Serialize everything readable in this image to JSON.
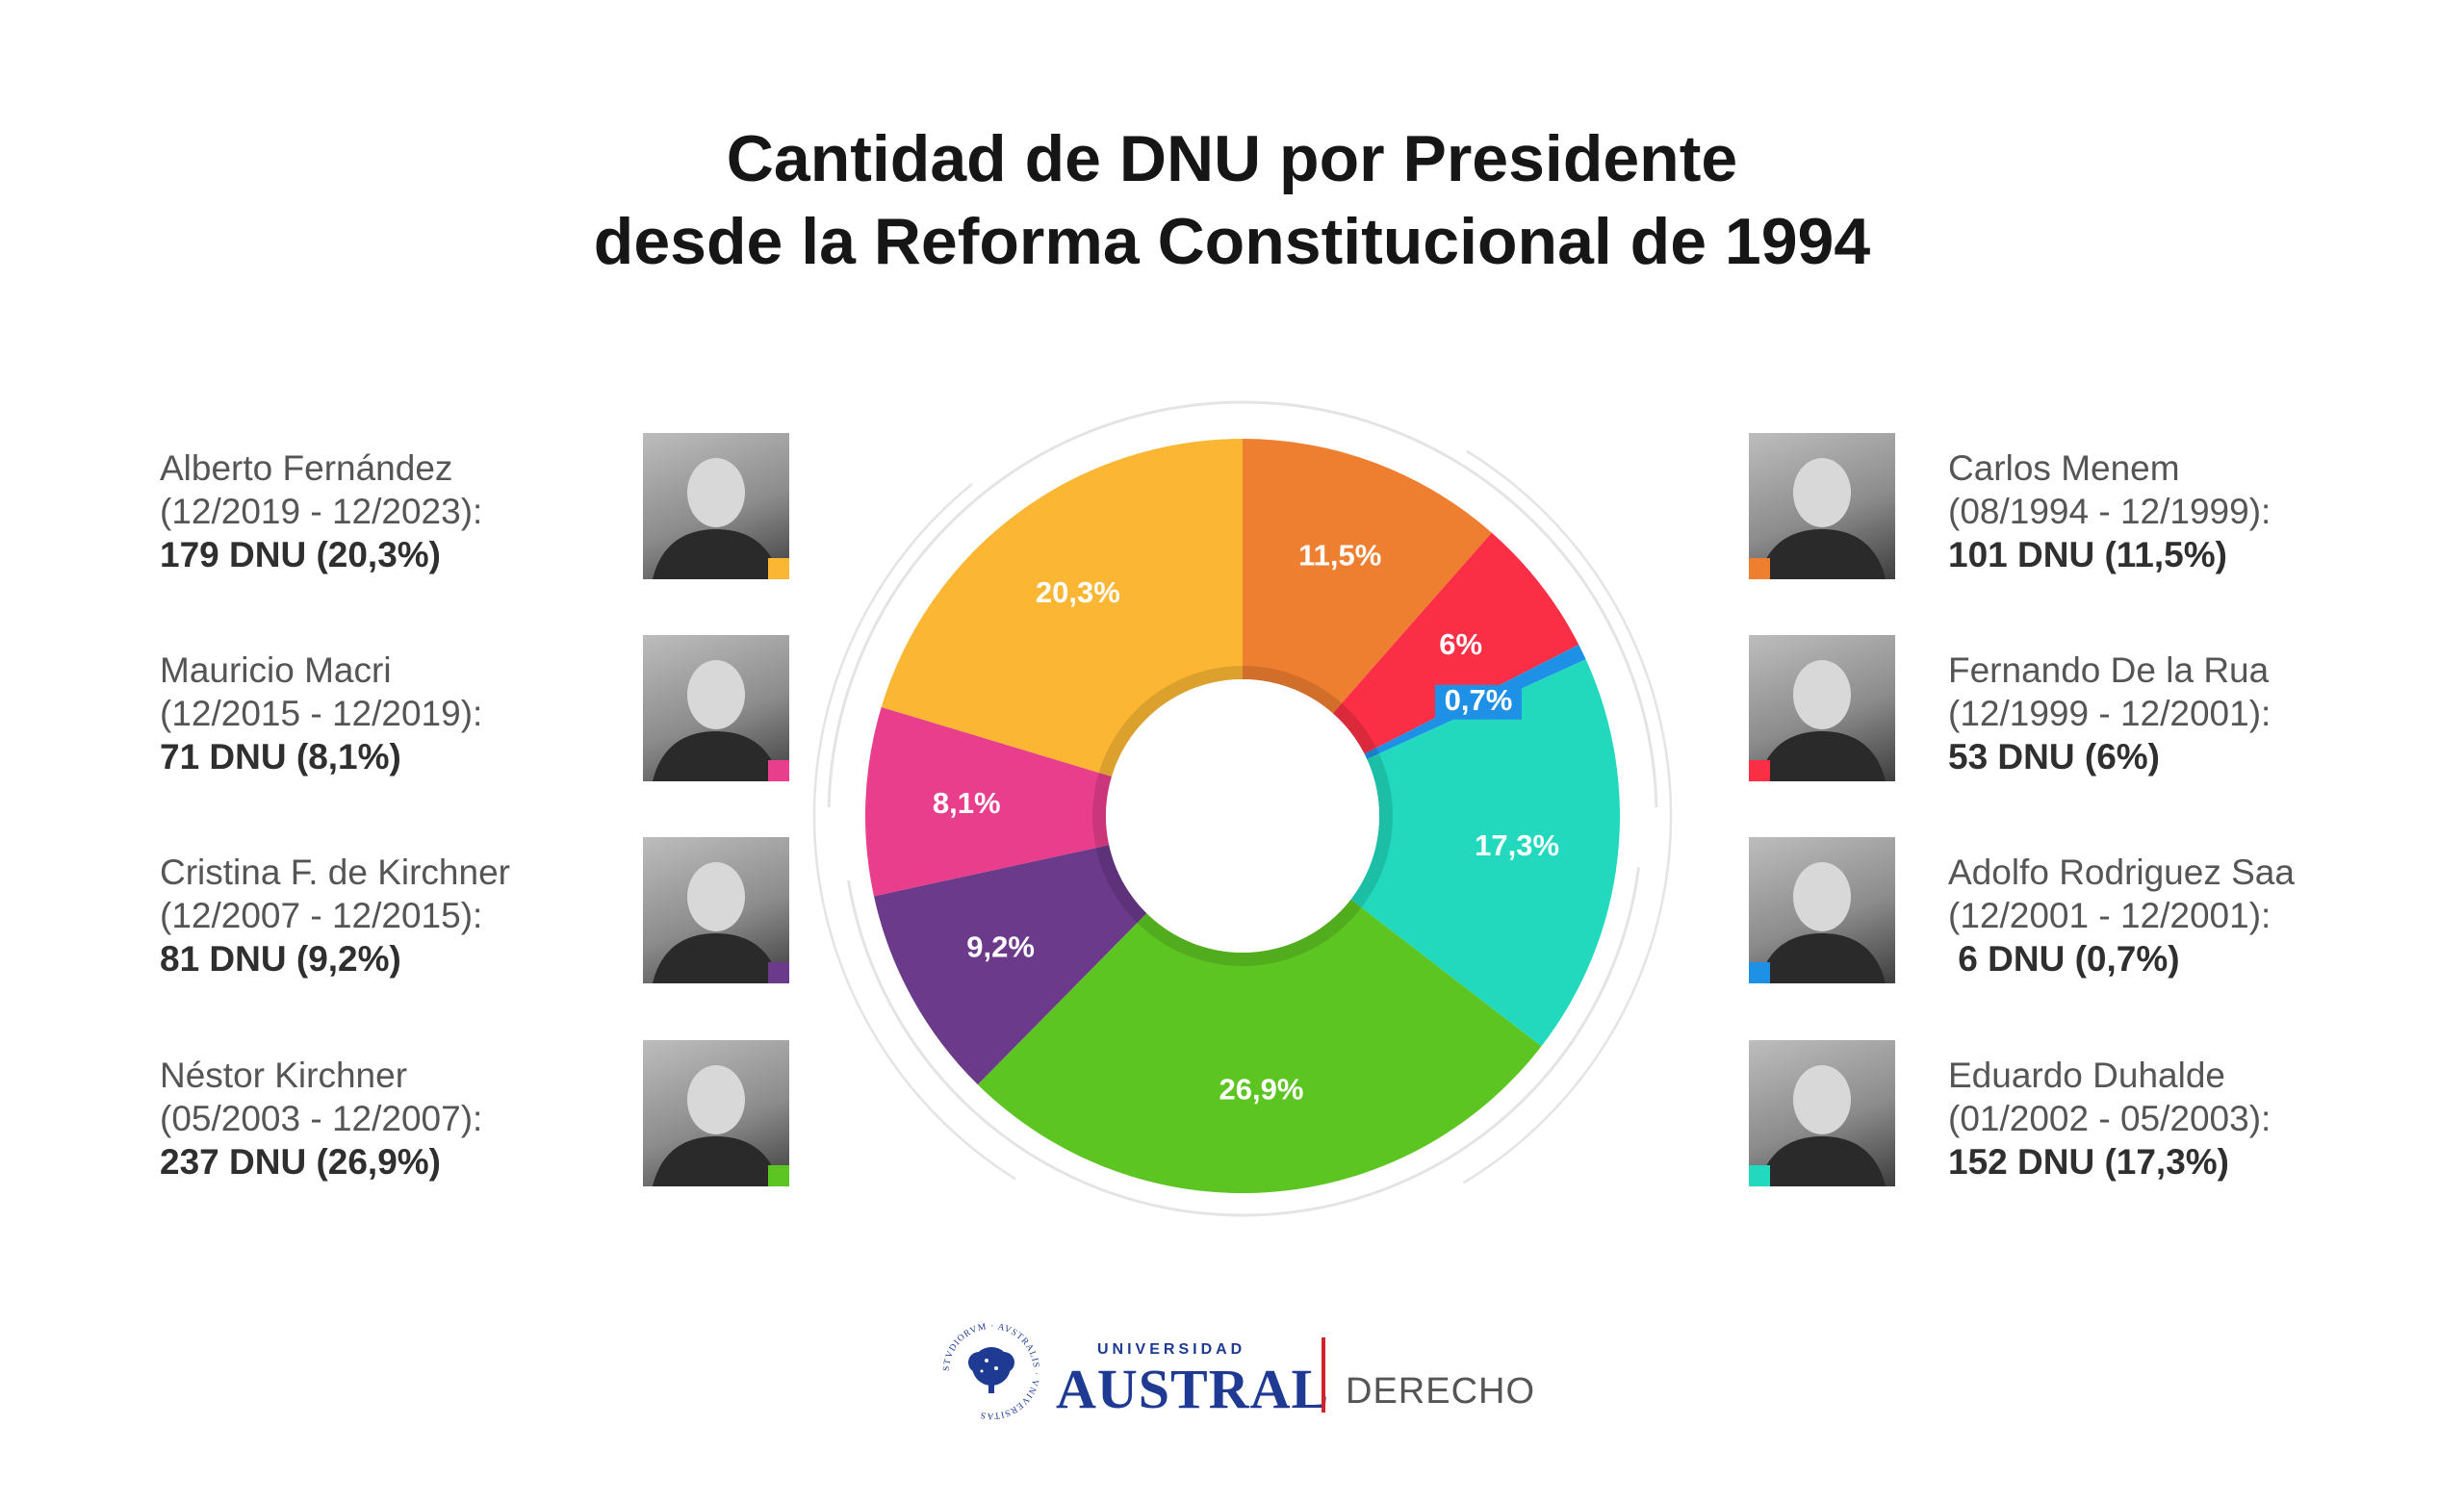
{
  "title": {
    "line1": "Cantidad de DNU por Presidente",
    "line2": "desde la Reforma Constitucional de 1994"
  },
  "presidents_left": [
    {
      "name": "Alberto Fernández",
      "period": "(12/2019 - 12/2023):",
      "count": "179 DNU (20,3%)",
      "color": "#FBB733"
    },
    {
      "name": "Mauricio Macri",
      "period": "(12/2015 - 12/2019):",
      "count": "71 DNU (8,1%)",
      "color": "#E83E8C"
    },
    {
      "name": "Cristina F. de Kirchner",
      "period": "(12/2007 - 12/2015):",
      "count": "81 DNU (9,2%)",
      "color": "#6B3A8B"
    },
    {
      "name": "Néstor Kirchner",
      "period": "(05/2003 - 12/2007):",
      "count": "237 DNU (26,9%)",
      "color": "#5DC522"
    }
  ],
  "presidents_right": [
    {
      "name": "Carlos Menem",
      "period": "(08/1994 - 12/1999):",
      "count": "101 DNU (11,5%)",
      "color": "#EE7E30"
    },
    {
      "name": "Fernando De la Rua",
      "period": "(12/1999 - 12/2001):",
      "count": "53 DNU (6%)",
      "color": "#FA2F45"
    },
    {
      "name": "Adolfo Rodriguez Saa",
      "period": "(12/2001 - 12/2001):",
      "count": " 6 DNU (0,7%)",
      "color": "#1E90E6"
    },
    {
      "name": "Eduardo Duhalde",
      "period": "(01/2002 - 05/2003):",
      "count": "152 DNU (17,3%)",
      "color": "#22D9BD"
    }
  ],
  "chart_data": {
    "type": "pie",
    "variant": "donut",
    "slices": [
      {
        "label": "11,5%",
        "value": 101,
        "color": "#EE7E30"
      },
      {
        "label": "6%",
        "value": 53,
        "color": "#FA2F45"
      },
      {
        "label": "0,7%",
        "value": 6,
        "color": "#1E90E6"
      },
      {
        "label": "17,3%",
        "value": 152,
        "color": "#22D9BD"
      },
      {
        "label": "26,9%",
        "value": 237,
        "color": "#5DC522"
      },
      {
        "label": "9,2%",
        "value": 81,
        "color": "#6B3A8B"
      },
      {
        "label": "8,1%",
        "value": 71,
        "color": "#E83E8C"
      },
      {
        "label": "20,3%",
        "value": 179,
        "color": "#FBB733"
      }
    ]
  },
  "footer": {
    "university_small": "UNIVERSIDAD",
    "university_name": "AUSTRAL",
    "faculty": "DERECHO",
    "seal_text": "STVDIORVM · AVSTRALIS · VNIVERSITAS"
  }
}
